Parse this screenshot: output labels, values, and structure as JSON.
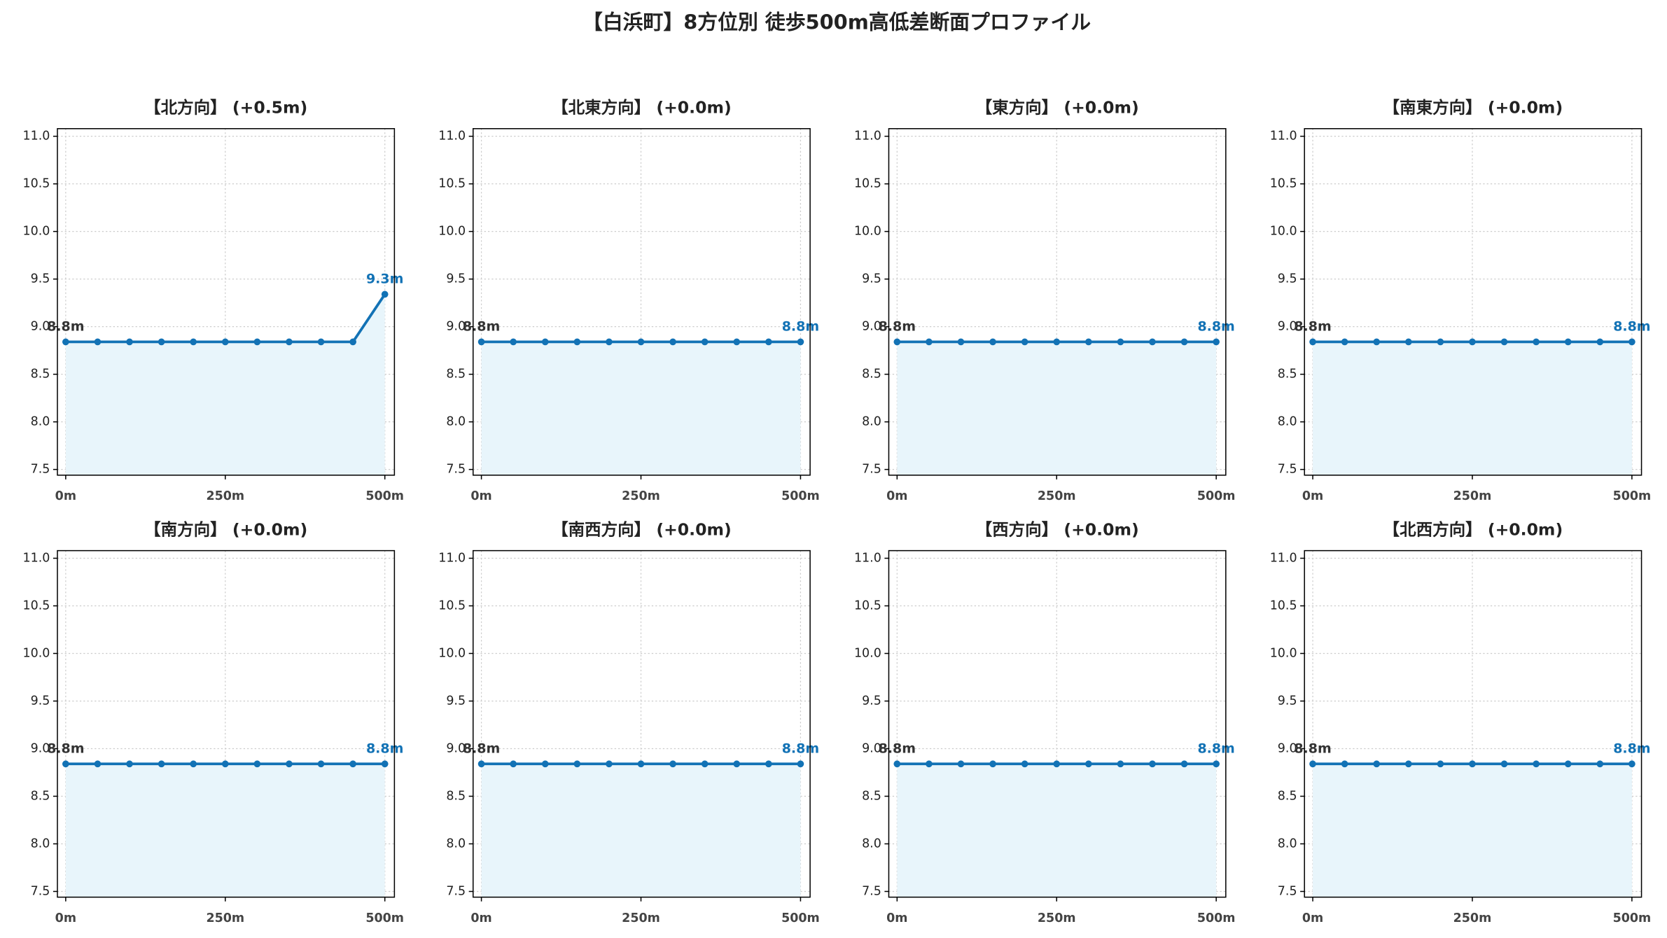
{
  "title": "【白浜町】8方位別 徒歩500m高低差断面プロファイル",
  "chart_data": [
    {
      "type": "line",
      "title": "【北方向】 (+0.5m)",
      "x": [
        0,
        50,
        100,
        150,
        200,
        250,
        300,
        350,
        400,
        450,
        500
      ],
      "values": [
        8.84,
        8.84,
        8.84,
        8.84,
        8.84,
        8.84,
        8.84,
        8.84,
        8.84,
        8.84,
        9.34
      ],
      "value_labels": [
        "8.8m",
        null,
        null,
        null,
        null,
        null,
        null,
        null,
        null,
        null,
        "9.3m"
      ],
      "color": "#1272b5",
      "fill_color": "#e8f5fb",
      "xlim": [
        -13,
        515
      ],
      "ylim": [
        7.44,
        11.08
      ],
      "xticks": [
        {
          "value": 0,
          "label": "0m"
        },
        {
          "value": 250,
          "label": "250m"
        },
        {
          "value": 500,
          "label": "500m"
        }
      ],
      "yticks": [
        7.5,
        {
          "value": 8,
          "label": "8.0"
        },
        8.5,
        {
          "value": 9,
          "label": "9.0"
        },
        9.5,
        {
          "value": 10,
          "label": "10.0"
        },
        10.5,
        {
          "value": 11,
          "label": "11.0"
        }
      ],
      "grid": true
    },
    {
      "type": "line",
      "title": "【北東方向】 (+0.0m)",
      "x": [
        0,
        50,
        100,
        150,
        200,
        250,
        300,
        350,
        400,
        450,
        500
      ],
      "values": [
        8.84,
        8.84,
        8.84,
        8.84,
        8.84,
        8.84,
        8.84,
        8.84,
        8.84,
        8.84,
        8.84
      ],
      "value_labels": [
        "8.8m",
        null,
        null,
        null,
        null,
        null,
        null,
        null,
        null,
        null,
        "8.8m"
      ],
      "color": "#1272b5",
      "fill_color": "#e8f5fb",
      "xlim": [
        -13,
        515
      ],
      "ylim": [
        7.44,
        11.08
      ],
      "xticks": [
        {
          "value": 0,
          "label": "0m"
        },
        {
          "value": 250,
          "label": "250m"
        },
        {
          "value": 500,
          "label": "500m"
        }
      ],
      "yticks": [
        7.5,
        {
          "value": 8,
          "label": "8.0"
        },
        8.5,
        {
          "value": 9,
          "label": "9.0"
        },
        9.5,
        {
          "value": 10,
          "label": "10.0"
        },
        10.5,
        {
          "value": 11,
          "label": "11.0"
        }
      ],
      "grid": true
    },
    {
      "type": "line",
      "title": "【東方向】 (+0.0m)",
      "x": [
        0,
        50,
        100,
        150,
        200,
        250,
        300,
        350,
        400,
        450,
        500
      ],
      "values": [
        8.84,
        8.84,
        8.84,
        8.84,
        8.84,
        8.84,
        8.84,
        8.84,
        8.84,
        8.84,
        8.84
      ],
      "value_labels": [
        "8.8m",
        null,
        null,
        null,
        null,
        null,
        null,
        null,
        null,
        null,
        "8.8m"
      ],
      "color": "#1272b5",
      "fill_color": "#e8f5fb",
      "xlim": [
        -13,
        515
      ],
      "ylim": [
        7.44,
        11.08
      ],
      "xticks": [
        {
          "value": 0,
          "label": "0m"
        },
        {
          "value": 250,
          "label": "250m"
        },
        {
          "value": 500,
          "label": "500m"
        }
      ],
      "yticks": [
        7.5,
        {
          "value": 8,
          "label": "8.0"
        },
        8.5,
        {
          "value": 9,
          "label": "9.0"
        },
        9.5,
        {
          "value": 10,
          "label": "10.0"
        },
        10.5,
        {
          "value": 11,
          "label": "11.0"
        }
      ],
      "grid": true
    },
    {
      "type": "line",
      "title": "【南東方向】 (+0.0m)",
      "x": [
        0,
        50,
        100,
        150,
        200,
        250,
        300,
        350,
        400,
        450,
        500
      ],
      "values": [
        8.84,
        8.84,
        8.84,
        8.84,
        8.84,
        8.84,
        8.84,
        8.84,
        8.84,
        8.84,
        8.84
      ],
      "value_labels": [
        "8.8m",
        null,
        null,
        null,
        null,
        null,
        null,
        null,
        null,
        null,
        "8.8m"
      ],
      "color": "#1272b5",
      "fill_color": "#e8f5fb",
      "xlim": [
        -13,
        515
      ],
      "ylim": [
        7.44,
        11.08
      ],
      "xticks": [
        {
          "value": 0,
          "label": "0m"
        },
        {
          "value": 250,
          "label": "250m"
        },
        {
          "value": 500,
          "label": "500m"
        }
      ],
      "yticks": [
        7.5,
        {
          "value": 8,
          "label": "8.0"
        },
        8.5,
        {
          "value": 9,
          "label": "9.0"
        },
        9.5,
        {
          "value": 10,
          "label": "10.0"
        },
        10.5,
        {
          "value": 11,
          "label": "11.0"
        }
      ],
      "grid": true
    },
    {
      "type": "line",
      "title": "【南方向】 (+0.0m)",
      "x": [
        0,
        50,
        100,
        150,
        200,
        250,
        300,
        350,
        400,
        450,
        500
      ],
      "values": [
        8.84,
        8.84,
        8.84,
        8.84,
        8.84,
        8.84,
        8.84,
        8.84,
        8.84,
        8.84,
        8.84
      ],
      "value_labels": [
        "8.8m",
        null,
        null,
        null,
        null,
        null,
        null,
        null,
        null,
        null,
        "8.8m"
      ],
      "color": "#1272b5",
      "fill_color": "#e8f5fb",
      "xlim": [
        -13,
        515
      ],
      "ylim": [
        7.44,
        11.08
      ],
      "xticks": [
        {
          "value": 0,
          "label": "0m"
        },
        {
          "value": 250,
          "label": "250m"
        },
        {
          "value": 500,
          "label": "500m"
        }
      ],
      "yticks": [
        7.5,
        {
          "value": 8,
          "label": "8.0"
        },
        8.5,
        {
          "value": 9,
          "label": "9.0"
        },
        9.5,
        {
          "value": 10,
          "label": "10.0"
        },
        10.5,
        {
          "value": 11,
          "label": "11.0"
        }
      ],
      "grid": true
    },
    {
      "type": "line",
      "title": "【南西方向】 (+0.0m)",
      "x": [
        0,
        50,
        100,
        150,
        200,
        250,
        300,
        350,
        400,
        450,
        500
      ],
      "values": [
        8.84,
        8.84,
        8.84,
        8.84,
        8.84,
        8.84,
        8.84,
        8.84,
        8.84,
        8.84,
        8.84
      ],
      "value_labels": [
        "8.8m",
        null,
        null,
        null,
        null,
        null,
        null,
        null,
        null,
        null,
        "8.8m"
      ],
      "color": "#1272b5",
      "fill_color": "#e8f5fb",
      "xlim": [
        -13,
        515
      ],
      "ylim": [
        7.44,
        11.08
      ],
      "xticks": [
        {
          "value": 0,
          "label": "0m"
        },
        {
          "value": 250,
          "label": "250m"
        },
        {
          "value": 500,
          "label": "500m"
        }
      ],
      "yticks": [
        7.5,
        {
          "value": 8,
          "label": "8.0"
        },
        8.5,
        {
          "value": 9,
          "label": "9.0"
        },
        9.5,
        {
          "value": 10,
          "label": "10.0"
        },
        10.5,
        {
          "value": 11,
          "label": "11.0"
        }
      ],
      "grid": true
    },
    {
      "type": "line",
      "title": "【西方向】 (+0.0m)",
      "x": [
        0,
        50,
        100,
        150,
        200,
        250,
        300,
        350,
        400,
        450,
        500
      ],
      "values": [
        8.84,
        8.84,
        8.84,
        8.84,
        8.84,
        8.84,
        8.84,
        8.84,
        8.84,
        8.84,
        8.84
      ],
      "value_labels": [
        "8.8m",
        null,
        null,
        null,
        null,
        null,
        null,
        null,
        null,
        null,
        "8.8m"
      ],
      "color": "#1272b5",
      "fill_color": "#e8f5fb",
      "xlim": [
        -13,
        515
      ],
      "ylim": [
        7.44,
        11.08
      ],
      "xticks": [
        {
          "value": 0,
          "label": "0m"
        },
        {
          "value": 250,
          "label": "250m"
        },
        {
          "value": 500,
          "label": "500m"
        }
      ],
      "yticks": [
        7.5,
        {
          "value": 8,
          "label": "8.0"
        },
        8.5,
        {
          "value": 9,
          "label": "9.0"
        },
        9.5,
        {
          "value": 10,
          "label": "10.0"
        },
        10.5,
        {
          "value": 11,
          "label": "11.0"
        }
      ],
      "grid": true
    },
    {
      "type": "line",
      "title": "【北西方向】 (+0.0m)",
      "x": [
        0,
        50,
        100,
        150,
        200,
        250,
        300,
        350,
        400,
        450,
        500
      ],
      "values": [
        8.84,
        8.84,
        8.84,
        8.84,
        8.84,
        8.84,
        8.84,
        8.84,
        8.84,
        8.84,
        8.84
      ],
      "value_labels": [
        "8.8m",
        null,
        null,
        null,
        null,
        null,
        null,
        null,
        null,
        null,
        "8.8m"
      ],
      "color": "#1272b5",
      "fill_color": "#e8f5fb",
      "xlim": [
        -13,
        515
      ],
      "ylim": [
        7.44,
        11.08
      ],
      "xticks": [
        {
          "value": 0,
          "label": "0m"
        },
        {
          "value": 250,
          "label": "250m"
        },
        {
          "value": 500,
          "label": "500m"
        }
      ],
      "yticks": [
        7.5,
        {
          "value": 8,
          "label": "8.0"
        },
        8.5,
        {
          "value": 9,
          "label": "9.0"
        },
        9.5,
        {
          "value": 10,
          "label": "10.0"
        },
        10.5,
        {
          "value": 11,
          "label": "11.0"
        }
      ],
      "grid": true
    }
  ]
}
